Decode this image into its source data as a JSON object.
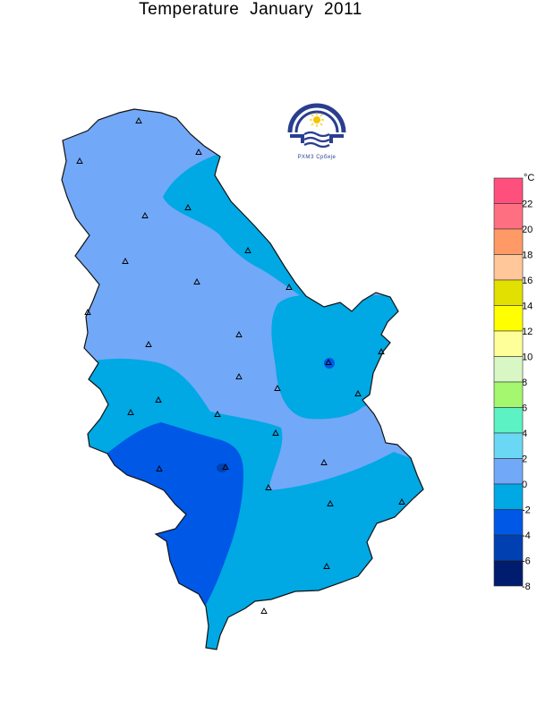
{
  "title": "Temperature  January  2011",
  "logo": {
    "text": "РХМЗ  Србије"
  },
  "legend": {
    "unit": "°C",
    "entries": [
      {
        "label": "22",
        "color": "#ff4f7c"
      },
      {
        "label": "20",
        "color": "#ff6f82"
      },
      {
        "label": "18",
        "color": "#ff9a66"
      },
      {
        "label": "16",
        "color": "#ffc79a"
      },
      {
        "label": "14",
        "color": "#e2e000"
      },
      {
        "label": "12",
        "color": "#ffff00"
      },
      {
        "label": "10",
        "color": "#ffff99"
      },
      {
        "label": "8",
        "color": "#d8f7c4"
      },
      {
        "label": "6",
        "color": "#a4f76e"
      },
      {
        "label": "4",
        "color": "#5cf2c4"
      },
      {
        "label": "2",
        "color": "#6ad8f4"
      },
      {
        "label": "0",
        "color": "#72a8f8"
      },
      {
        "label": "-2",
        "color": "#00a8e4"
      },
      {
        "label": "-4",
        "color": "#0058e6"
      },
      {
        "label": "-6",
        "color": "#0040b0"
      },
      {
        "label": "-8",
        "color": "#001c6e"
      }
    ]
  },
  "zones": {
    "light": "#72a8f8",
    "cyan": "#00a8e4",
    "blue": "#0058e6",
    "dark": "#0040b0"
  }
}
